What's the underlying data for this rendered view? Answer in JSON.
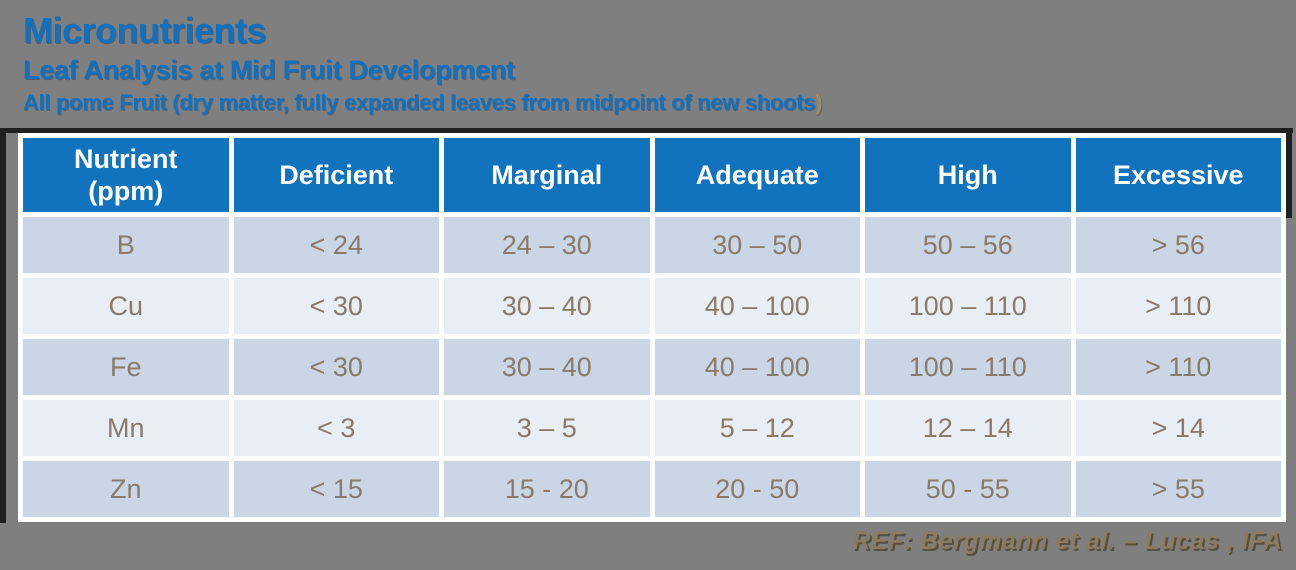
{
  "slide": {
    "title": "Micronutrients",
    "subtitle": "Leaf Analysis at Mid Fruit Development",
    "caption_main": "All pome Fruit (dry matter, fully expanded leaves from midpoint of new shoots",
    "caption_paren": ")",
    "reference": "REF: Bergmann et al. – Lucas , IFA"
  },
  "colors": {
    "background": "#7f7f7f",
    "title_blue": "#1171bf",
    "caption_paren_color": "#9b8b73",
    "header_fill": "#1172bd",
    "header_text": "#ffffff",
    "row_dark": "#cad5e6",
    "row_light": "#e9edf4",
    "cell_text": "#8a7b68",
    "grid_line": "#ffffff",
    "table_frame": "#1f1f1f",
    "reference_color": "#8b7b60",
    "reference_shadow": "#55503f"
  },
  "chart_data": {
    "type": "table",
    "title": "Micronutrients",
    "columns": [
      "Nutrient\n(ppm)",
      "Deficient",
      "Marginal",
      "Adequate",
      "High",
      "Excessive"
    ],
    "rows": [
      [
        "B",
        "< 24",
        "24 – 30",
        "30 – 50",
        "50 – 56",
        "> 56"
      ],
      [
        "Cu",
        "< 30",
        "30 – 40",
        "40 – 100",
        "100 – 110",
        "> 110"
      ],
      [
        "Fe",
        "< 30",
        "30 – 40",
        "40 – 100",
        "100 – 110",
        "> 110"
      ],
      [
        "Mn",
        "< 3",
        "3 – 5",
        "5 – 12",
        "12 – 14",
        "> 14"
      ],
      [
        "Zn",
        "< 15",
        "15 - 20",
        "20 - 50",
        "50 - 55",
        "> 55"
      ]
    ]
  }
}
